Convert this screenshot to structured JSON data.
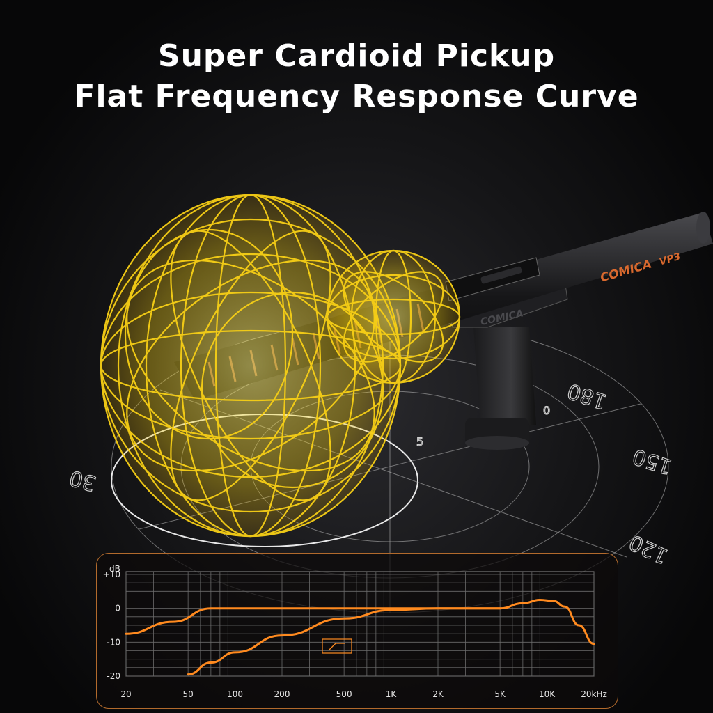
{
  "headline": {
    "line1": "Super Cardioid Pickup",
    "line2": "Flat Frequency Response Curve"
  },
  "product": {
    "brand": "COMICA",
    "model": "VP3",
    "mount_text": "COMICA"
  },
  "polar_labels": {
    "deg180": "180",
    "deg150": "150",
    "deg120": "120",
    "deg30": "30",
    "ring0": "0",
    "ring5": "5"
  },
  "colors": {
    "pattern": "#f2d21a",
    "curve": "#ff8a1f",
    "panel_border": "#b26a2c"
  },
  "chart_data": {
    "type": "line",
    "ylabel": "dB",
    "y_ticks": [
      "+10",
      "0",
      "-10",
      "-20"
    ],
    "x_ticks": [
      "20",
      "50",
      "100",
      "200",
      "500",
      "1K",
      "2K",
      "5K",
      "10K",
      "20kHz"
    ],
    "ylim": [
      -20,
      10
    ],
    "xlim": [
      20,
      20000
    ],
    "x_scale": "log",
    "grid": true,
    "series": [
      {
        "x": [
          20,
          40,
          70,
          100,
          200,
          500,
          1000,
          2000,
          5000,
          7000,
          9000,
          11000,
          13000,
          16000,
          20000
        ],
        "y": [
          -7.5,
          -4,
          0,
          0,
          0,
          0,
          0,
          0,
          0,
          1.5,
          2.5,
          2.2,
          0.5,
          -5,
          -10.5
        ]
      },
      {
        "x": [
          50,
          70,
          100,
          200,
          500,
          1000,
          2000,
          5000
        ],
        "y": [
          -19.5,
          -16,
          -13,
          -8,
          -3,
          -0.5,
          0,
          0
        ]
      }
    ]
  }
}
